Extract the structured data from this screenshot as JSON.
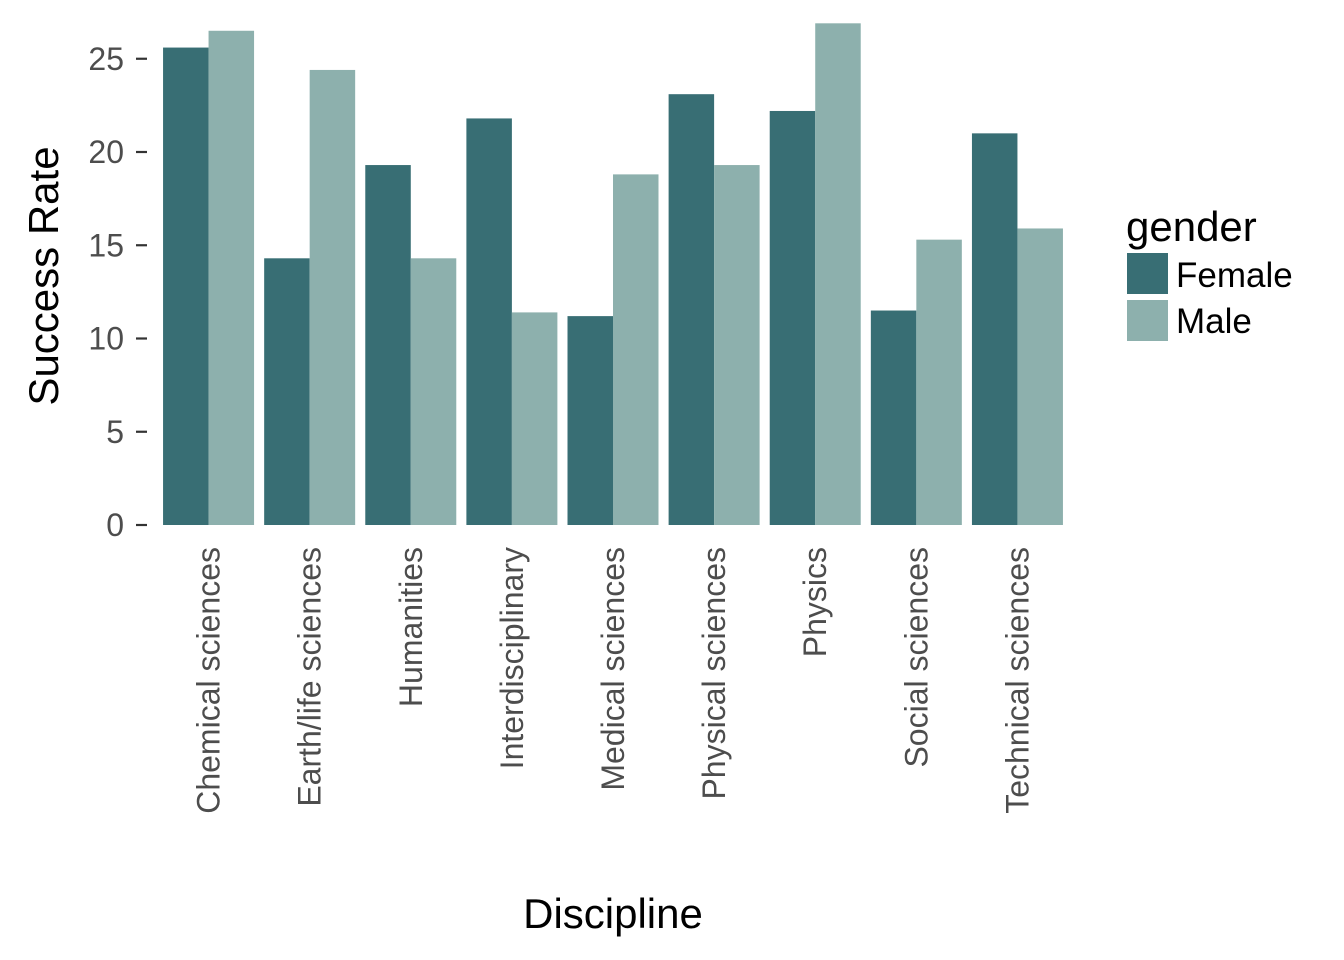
{
  "chart_data": {
    "type": "bar",
    "xlabel": "Discipline",
    "ylabel": "Success Rate",
    "ylim": [
      0,
      27
    ],
    "yticks": [
      0,
      5,
      10,
      15,
      20,
      25
    ],
    "grid": false,
    "legend": {
      "title": "gender",
      "placement": "right"
    },
    "categories": [
      "Chemical sciences",
      "Earth/life sciences",
      "Humanities",
      "Interdisciplinary",
      "Medical sciences",
      "Physical sciences",
      "Physics",
      "Social sciences",
      "Technical sciences"
    ],
    "series": [
      {
        "name": "Female",
        "color": "#386e74",
        "values": [
          25.6,
          14.3,
          19.3,
          21.8,
          11.2,
          23.1,
          22.2,
          11.5,
          21.0
        ]
      },
      {
        "name": "Male",
        "color": "#8db0ad",
        "values": [
          26.5,
          24.4,
          14.3,
          11.4,
          18.8,
          19.3,
          26.9,
          15.3,
          15.9
        ]
      }
    ]
  }
}
